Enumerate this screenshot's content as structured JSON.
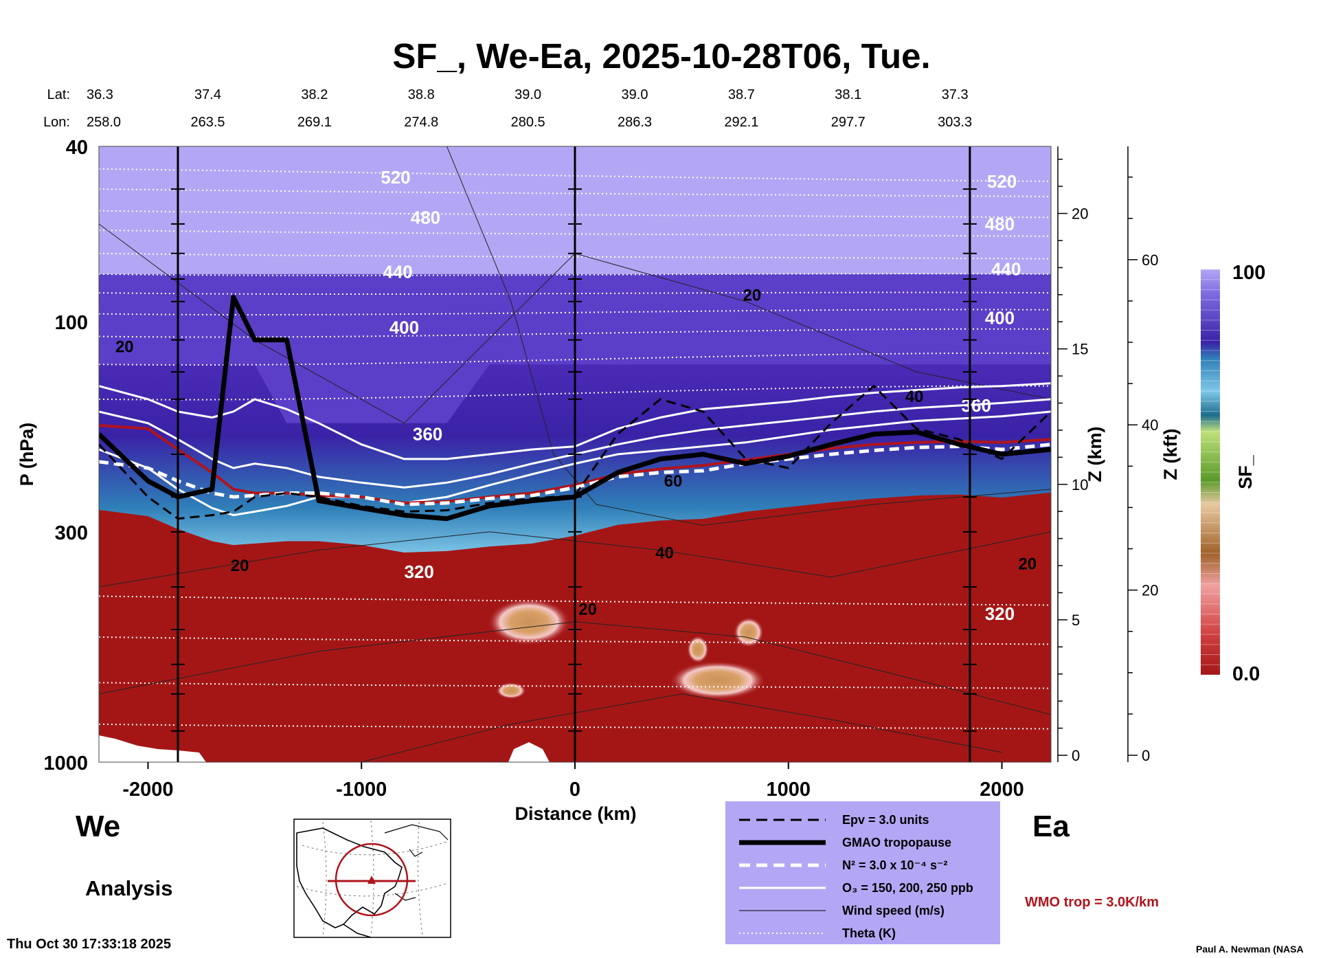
{
  "chart_data": {
    "type": "heatmap",
    "title": "SF_, We-Ea, 2025-10-28T06, Tue.",
    "variable": "SF_",
    "xlabel": "Distance (km)",
    "ylabel": "P (hPa)",
    "ylabel_right_km": "Z (km)",
    "ylabel_right_kft": "Z (kft)",
    "xlim": [
      -2230,
      2230
    ],
    "ylim_hpa": [
      1000,
      40
    ],
    "x_ticks": [
      -2000,
      -1000,
      0,
      1000,
      2000
    ],
    "x_tick_labels": [
      "-2000",
      "-1000",
      "0",
      "1000",
      "2000"
    ],
    "y_ticks_hpa": [
      40,
      100,
      300,
      1000
    ],
    "y_tick_labels": [
      "40",
      "100",
      "300",
      "1000"
    ],
    "z_km_ticks": [
      0,
      5,
      10,
      15,
      20
    ],
    "z_km_tick_labels": [
      "0",
      "5",
      "10",
      "15",
      "20"
    ],
    "z_kft_ticks": [
      0,
      20,
      40,
      60
    ],
    "z_kft_tick_labels": [
      "0",
      "20",
      "40",
      "60"
    ],
    "lat_label": "Lat:",
    "lon_label": "Lon:",
    "latlon_positions_km": [
      -2230,
      -1720,
      -1220,
      -720,
      -220,
      280,
      780,
      1280,
      1780
    ],
    "lat": [
      "36.3",
      "37.4",
      "38.2",
      "38.8",
      "39.0",
      "39.0",
      "38.7",
      "38.1",
      "37.3"
    ],
    "lon": [
      "258.0",
      "263.5",
      "269.1",
      "274.8",
      "280.5",
      "286.3",
      "292.1",
      "297.7",
      "303.3"
    ],
    "vertical_markers_km": [
      -1860,
      0,
      1850
    ],
    "colorbar": {
      "min": 0.0,
      "max": 100,
      "min_label": "0.0",
      "max_label": "100",
      "label": "SF_"
    },
    "theta_labels": [
      {
        "text": "520",
        "x": -840,
        "p": 47
      },
      {
        "text": "480",
        "x": -700,
        "p": 58
      },
      {
        "text": "440",
        "x": -830,
        "p": 77
      },
      {
        "text": "400",
        "x": -800,
        "p": 103
      },
      {
        "text": "360",
        "x": -690,
        "p": 180
      },
      {
        "text": "320",
        "x": -730,
        "p": 370
      },
      {
        "text": "520",
        "x": 2000,
        "p": 48
      },
      {
        "text": "480",
        "x": 1990,
        "p": 60
      },
      {
        "text": "440",
        "x": 2020,
        "p": 76
      },
      {
        "text": "400",
        "x": 1990,
        "p": 98
      },
      {
        "text": "360",
        "x": 1880,
        "p": 155
      },
      {
        "text": "320",
        "x": 1990,
        "p": 460
      }
    ],
    "wind_labels": [
      {
        "text": "20",
        "x": -2110,
        "p": 114
      },
      {
        "text": "20",
        "x": 830,
        "p": 87
      },
      {
        "text": "40",
        "x": 1590,
        "p": 148
      },
      {
        "text": "60",
        "x": 460,
        "p": 230
      },
      {
        "text": "40",
        "x": 420,
        "p": 335
      },
      {
        "text": "20",
        "x": -1570,
        "p": 358
      },
      {
        "text": "20",
        "x": 60,
        "p": 450
      },
      {
        "text": "20",
        "x": 2120,
        "p": 355
      }
    ],
    "profiles_km": [
      -2230,
      -2000,
      -1860,
      -1700,
      -1600,
      -1500,
      -1350,
      -1200,
      -1000,
      -800,
      -600,
      -400,
      -200,
      0,
      200,
      400,
      600,
      800,
      1000,
      1200,
      1400,
      1600,
      1800,
      2000,
      2230
    ],
    "series": [
      {
        "name": "GMAO tropopause",
        "style": "thick-black",
        "values": [
          180,
          230,
          250,
          240,
          88,
          110,
          110,
          255,
          265,
          275,
          280,
          262,
          255,
          250,
          220,
          205,
          200,
          210,
          202,
          190,
          180,
          178,
          190,
          200,
          195
        ]
      },
      {
        "name": "Epv = 3.0 units",
        "style": "dashed-black",
        "values": [
          190,
          250,
          280,
          275,
          270,
          250,
          245,
          250,
          262,
          270,
          268,
          258,
          252,
          248,
          180,
          150,
          160,
          205,
          215,
          170,
          140,
          175,
          185,
          205,
          160
        ]
      },
      {
        "name": "N2 = 3.0 x 10-4 s-2",
        "style": "dashed-white",
        "values": [
          208,
          215,
          230,
          245,
          250,
          248,
          245,
          245,
          250,
          260,
          258,
          252,
          248,
          238,
          225,
          220,
          218,
          210,
          205,
          200,
          196,
          193,
          192,
          195,
          190
        ]
      },
      {
        "name": "WMO trop = 3.0K/km",
        "style": "red",
        "values": [
          172,
          175,
          195,
          220,
          240,
          245,
          245,
          248,
          250,
          258,
          256,
          250,
          245,
          235,
          222,
          216,
          212,
          206,
          200,
          194,
          190,
          188,
          187,
          188,
          185
        ]
      }
    ],
    "ozone_contours": [
      {
        "name": "150 ppb",
        "values": [
          140,
          150,
          160,
          165,
          160,
          150,
          158,
          170,
          190,
          205,
          205,
          200,
          195,
          192,
          175,
          165,
          158,
          155,
          152,
          148,
          145,
          143,
          141,
          140,
          138
        ]
      },
      {
        "name": "200 ppb",
        "values": [
          160,
          170,
          185,
          205,
          215,
          210,
          215,
          225,
          232,
          238,
          232,
          222,
          210,
          200,
          190,
          182,
          176,
          172,
          168,
          164,
          160,
          157,
          155,
          153,
          150
        ]
      },
      {
        "name": "250 ppb",
        "values": [
          195,
          215,
          240,
          265,
          275,
          270,
          262,
          250,
          250,
          258,
          250,
          235,
          222,
          210,
          200,
          196,
          192,
          188,
          182,
          176,
          172,
          168,
          166,
          164,
          160
        ]
      }
    ]
  },
  "labels": {
    "left_region": "We",
    "right_region": "Ea",
    "analysis": "Analysis",
    "timestamp": "Thu Oct 30 17:33:18 2025",
    "author": "Paul A. Newman (NASA",
    "wmo_note": "WMO trop = 3.0K/km"
  },
  "legend": {
    "items": [
      {
        "style": "dashed-black",
        "text": "Epv = 3.0 units"
      },
      {
        "style": "thick-black",
        "text": "GMAO tropopause"
      },
      {
        "style": "dashed-white",
        "text": "N² = 3.0 x 10⁻⁴ s⁻²"
      },
      {
        "style": "solid-white",
        "text": "O₃ = 150, 200, 250 ppb"
      },
      {
        "style": "thin-black",
        "text": "Wind speed (m/s)"
      },
      {
        "style": "dotted-white",
        "text": "Theta (K)"
      }
    ]
  },
  "colors": {
    "stratosphere_top": "#b3a7f5",
    "indigo": "#4a2bb6",
    "blue": "#2f7fb8",
    "cyan": "#7fc7e8",
    "green": "#73b83a",
    "light_green": "#bfe07a",
    "tan": "#d9a068",
    "brown": "#b07438",
    "pink": "#f0a0a0",
    "dark_red": "#a41616",
    "legend_bg": "#b3a7f5",
    "wmo_red": "#b0141c"
  }
}
